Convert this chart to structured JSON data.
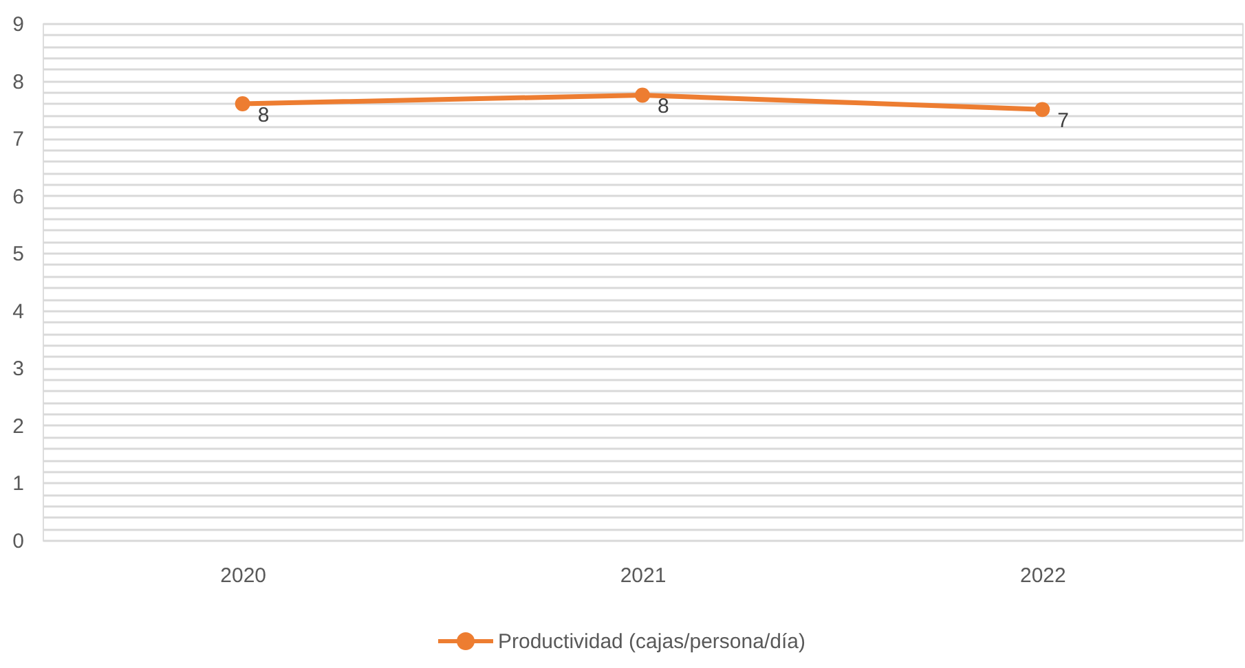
{
  "chart_data": {
    "type": "line",
    "categories": [
      "2020",
      "2021",
      "2022"
    ],
    "series": [
      {
        "name": "Productividad (cajas/persona/día)",
        "color": "#ed7d31",
        "values": [
          7.6,
          7.75,
          7.5
        ],
        "value_labels": [
          "8",
          "8",
          "7"
        ]
      }
    ],
    "ylim": [
      0,
      9
    ],
    "yticks": [
      0,
      {
        "value": 0.2,
        "label": null
      },
      {
        "value": 0.4,
        "label": null
      },
      {
        "value": 0.6,
        "label": null
      },
      {
        "value": 0.8,
        "label": null
      },
      1,
      {
        "value": 1.2,
        "label": null
      },
      {
        "value": 1.4,
        "label": null
      },
      {
        "value": 1.6,
        "label": null
      },
      {
        "value": 1.8,
        "label": null
      },
      2,
      {
        "value": 2.2,
        "label": null
      },
      {
        "value": 2.4,
        "label": null
      },
      {
        "value": 2.6,
        "label": null
      },
      {
        "value": 2.8,
        "label": null
      },
      3,
      {
        "value": 3.2,
        "label": null
      },
      {
        "value": 3.4,
        "label": null
      },
      {
        "value": 3.6,
        "label": null
      },
      {
        "value": 3.8,
        "label": null
      },
      4,
      {
        "value": 4.2,
        "label": null
      },
      {
        "value": 4.4,
        "label": null
      },
      {
        "value": 4.6,
        "label": null
      },
      {
        "value": 4.8,
        "label": null
      },
      5,
      {
        "value": 5.2,
        "label": null
      },
      {
        "value": 5.4,
        "label": null
      },
      {
        "value": 5.6,
        "label": null
      },
      {
        "value": 5.8,
        "label": null
      },
      6,
      {
        "value": 6.2,
        "label": null
      },
      {
        "value": 6.4,
        "label": null
      },
      {
        "value": 6.6,
        "label": null
      },
      {
        "value": 6.8,
        "label": null
      },
      7,
      {
        "value": 7.2,
        "label": null
      },
      {
        "value": 7.4,
        "label": null
      },
      {
        "value": 7.6,
        "label": null
      },
      {
        "value": 7.8,
        "label": null
      },
      8,
      {
        "value": 8.2,
        "label": null
      },
      {
        "value": 8.4,
        "label": null
      },
      {
        "value": 8.6,
        "label": null
      },
      {
        "value": 8.8,
        "label": null
      },
      9
    ],
    "grid": "y",
    "legend": "bottom",
    "marker": "circle",
    "line_style": "solid"
  }
}
